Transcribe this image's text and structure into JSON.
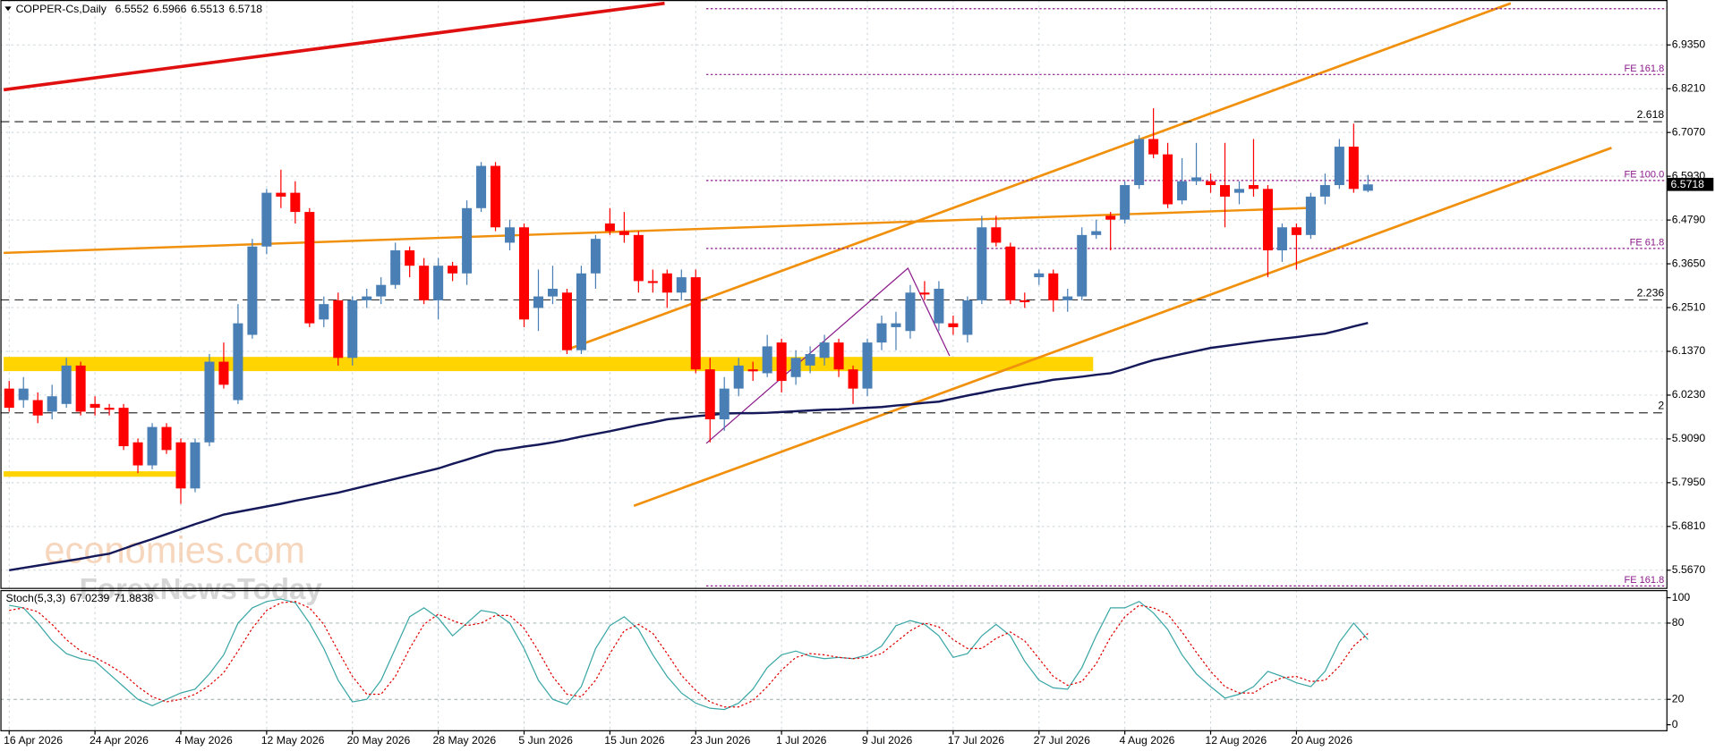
{
  "chart_data": {
    "type": "candlestick",
    "title": "COPPER-Cs,Daily",
    "categories": [
      "16 Apr 2026",
      null,
      null,
      null,
      null,
      null,
      "24 Apr 2026",
      null,
      null,
      null,
      null,
      null,
      "4 May 2026",
      null,
      null,
      null,
      null,
      null,
      "12 May 2026",
      null,
      null,
      null,
      null,
      null,
      "20 May 2026",
      null,
      null,
      null,
      null,
      null,
      "28 May 2026",
      null,
      null,
      null,
      null,
      null,
      "5 Jun 2026",
      null,
      null,
      null,
      null,
      null,
      "15 Jun 2026",
      null,
      null,
      null,
      null,
      null,
      "23 Jun 2026",
      null,
      null,
      null,
      null,
      null,
      "1 Jul 2026",
      null,
      null,
      null,
      null,
      null,
      "9 Jul 2026",
      null,
      null,
      null,
      null,
      null,
      "17 Jul 2026",
      null,
      null,
      null,
      null,
      null,
      "27 Jul 2026",
      null,
      null,
      null,
      null,
      null,
      "4 Aug 2026",
      null,
      null,
      null,
      null,
      null,
      "12 Aug 2026",
      null,
      null,
      null,
      null,
      null,
      "20 Aug 2026",
      null,
      null,
      null,
      null,
      null
    ],
    "open": [
      6.04,
      6.01,
      6.01,
      5.98,
      6.0,
      6.1,
      6.0,
      5.99,
      5.99,
      5.9,
      5.84,
      5.94,
      5.9,
      5.78,
      5.9,
      6.11,
      6.01,
      6.18,
      6.41,
      6.55,
      6.55,
      6.5,
      6.22,
      6.27,
      6.12,
      6.27,
      6.28,
      6.31,
      6.4,
      6.36,
      6.27,
      6.36,
      6.34,
      6.51,
      6.62,
      6.42,
      6.46,
      6.25,
      6.28,
      6.29,
      6.14,
      6.34,
      6.47,
      6.45,
      6.44,
      6.32,
      6.34,
      6.29,
      6.33,
      6.09,
      5.96,
      6.04,
      6.09,
      6.08,
      6.16,
      6.07,
      6.1,
      6.12,
      6.16,
      6.09,
      6.04,
      6.16,
      6.2,
      6.19,
      6.29,
      6.21,
      6.21,
      6.18,
      6.27,
      6.46,
      6.41,
      6.27,
      6.33,
      6.34,
      6.27,
      6.28,
      6.44,
      6.49,
      6.48,
      6.57,
      6.69,
      6.65,
      6.53,
      6.58,
      6.58,
      6.57,
      6.55,
      6.57,
      6.56,
      6.4,
      6.46,
      6.44,
      6.54,
      6.57,
      6.67,
      6.5552
    ],
    "high": [
      6.06,
      6.07,
      6.03,
      6.05,
      6.12,
      6.11,
      6.02,
      6.0,
      6.0,
      5.91,
      5.95,
      5.95,
      5.91,
      5.91,
      6.13,
      6.16,
      6.26,
      6.43,
      6.56,
      6.61,
      6.58,
      6.51,
      6.28,
      6.29,
      6.28,
      6.3,
      6.33,
      6.42,
      6.41,
      6.38,
      6.38,
      6.37,
      6.53,
      6.63,
      6.63,
      6.48,
      6.47,
      6.35,
      6.36,
      6.3,
      6.36,
      6.44,
      6.51,
      6.5,
      6.45,
      6.35,
      6.35,
      6.35,
      6.35,
      6.12,
      6.07,
      6.12,
      6.11,
      6.18,
      6.17,
      6.14,
      6.15,
      6.18,
      6.17,
      6.1,
      6.17,
      6.23,
      6.24,
      6.31,
      6.32,
      6.32,
      6.23,
      6.28,
      6.49,
      6.49,
      6.42,
      6.29,
      6.35,
      6.35,
      6.3,
      6.46,
      6.48,
      6.5,
      6.58,
      6.7,
      6.77,
      6.68,
      6.64,
      6.68,
      6.6,
      6.68,
      6.58,
      6.69,
      6.57,
      6.47,
      6.47,
      6.55,
      6.6,
      6.69,
      6.73,
      6.5966
    ],
    "low": [
      5.98,
      5.99,
      5.95,
      5.96,
      5.99,
      5.97,
      5.97,
      5.97,
      5.88,
      5.82,
      5.83,
      5.87,
      5.74,
      5.77,
      5.89,
      6.04,
      6.0,
      6.17,
      6.39,
      6.51,
      6.47,
      6.2,
      6.2,
      6.1,
      6.1,
      6.25,
      6.26,
      6.3,
      6.33,
      6.26,
      6.22,
      6.32,
      6.31,
      6.5,
      6.45,
      6.4,
      6.2,
      6.19,
      6.26,
      6.13,
      6.13,
      6.3,
      6.44,
      6.42,
      6.29,
      6.29,
      6.25,
      6.27,
      6.08,
      5.9,
      5.93,
      6.02,
      6.06,
      6.07,
      6.03,
      6.05,
      6.08,
      6.1,
      6.07,
      6.0,
      6.02,
      6.14,
      6.14,
      6.17,
      6.27,
      6.19,
      6.18,
      6.16,
      6.26,
      6.41,
      6.26,
      6.25,
      6.31,
      6.24,
      6.24,
      6.27,
      6.43,
      6.4,
      6.47,
      6.56,
      6.64,
      6.51,
      6.52,
      6.57,
      6.55,
      6.46,
      6.52,
      6.54,
      6.33,
      6.37,
      6.35,
      6.43,
      6.52,
      6.56,
      6.55,
      6.5513
    ],
    "close": [
      5.99,
      6.04,
      5.97,
      6.02,
      6.1,
      5.98,
      5.99,
      5.985,
      5.89,
      5.84,
      5.94,
      5.88,
      5.78,
      5.9,
      6.11,
      6.05,
      6.21,
      6.41,
      6.55,
      6.54,
      6.5,
      6.21,
      6.26,
      6.12,
      6.27,
      6.28,
      6.31,
      6.4,
      6.36,
      6.27,
      6.36,
      6.34,
      6.51,
      6.62,
      6.46,
      6.46,
      6.22,
      6.28,
      6.3,
      6.14,
      6.34,
      6.43,
      6.45,
      6.44,
      6.32,
      6.315,
      6.29,
      6.33,
      6.09,
      5.96,
      6.04,
      6.1,
      6.085,
      6.15,
      6.06,
      6.12,
      6.13,
      6.16,
      6.09,
      6.04,
      6.16,
      6.21,
      6.21,
      6.29,
      6.285,
      6.3,
      6.2,
      6.27,
      6.46,
      6.42,
      6.27,
      6.265,
      6.34,
      6.27,
      6.28,
      6.44,
      6.45,
      6.48,
      6.57,
      6.69,
      6.65,
      6.52,
      6.58,
      6.59,
      6.57,
      6.54,
      6.56,
      6.56,
      6.4,
      6.46,
      6.44,
      6.54,
      6.57,
      6.67,
      6.56,
      6.5718
    ],
    "bull_color": "#4a7fb5",
    "bear_color": "#ff0000",
    "ylim": [
      5.521,
      7.052
    ],
    "yticks": [
      {
        "value": 6.935,
        "label": "6.9350"
      },
      {
        "value": 6.821,
        "label": "6.8210"
      },
      {
        "value": 6.707,
        "label": "6.7070"
      },
      {
        "value": 6.593,
        "label": "6.5930"
      },
      {
        "value": 6.479,
        "label": "6.4790"
      },
      {
        "value": 6.365,
        "label": "6.3650"
      },
      {
        "value": 6.251,
        "label": "6.2510"
      },
      {
        "value": 6.137,
        "label": "6.1370"
      },
      {
        "value": 6.023,
        "label": "6.0230"
      },
      {
        "value": 5.909,
        "label": "5.9090"
      },
      {
        "value": 5.795,
        "label": "5.7950"
      },
      {
        "value": 5.681,
        "label": "5.6810"
      },
      {
        "value": 5.567,
        "label": "5.5670"
      }
    ],
    "grid": true,
    "moving_average": {
      "color": "#15195a",
      "values": [
        5.567,
        5.573,
        5.579,
        5.585,
        5.591,
        5.597,
        5.604,
        5.61,
        5.623,
        5.636,
        5.648,
        5.661,
        5.674,
        5.687,
        5.699,
        5.712,
        5.719,
        5.726,
        5.733,
        5.74,
        5.748,
        5.755,
        5.762,
        5.769,
        5.778,
        5.787,
        5.796,
        5.805,
        5.814,
        5.823,
        5.832,
        5.844,
        5.855,
        5.867,
        5.878,
        5.883,
        5.889,
        5.894,
        5.9,
        5.907,
        5.915,
        5.922,
        5.929,
        5.937,
        5.945,
        5.952,
        5.96,
        5.964,
        5.968,
        5.971,
        5.975,
        5.976,
        5.976,
        5.977,
        5.979,
        5.981,
        5.983,
        5.985,
        5.986,
        5.988,
        5.99,
        5.992,
        5.996,
        5.999,
        6.003,
        6.006,
        6.014,
        6.022,
        6.029,
        6.037,
        6.043,
        6.05,
        6.056,
        6.063,
        6.067,
        6.071,
        6.076,
        6.08,
        6.091,
        6.103,
        6.114,
        6.122,
        6.13,
        6.138,
        6.146,
        6.151,
        6.156,
        6.161,
        6.166,
        6.17,
        6.174,
        6.179,
        6.183,
        6.192,
        6.202,
        6.211
      ]
    },
    "levels": [
      {
        "label": "2.618",
        "value": 6.735
      },
      {
        "label": "2.236",
        "value": 6.271
      },
      {
        "label": "2",
        "value": 5.977
      }
    ],
    "fib_levels": [
      {
        "label": "FE 161.8",
        "value": 6.858
      },
      {
        "label": "FE 100.0",
        "value": 6.582
      },
      {
        "label": "FE 61.8",
        "value": 6.405
      },
      {
        "label": "FE 161.8",
        "value": 5.526
      }
    ],
    "fib_color": "#8b1a8b",
    "watermark": [
      "economies.com",
      "ForexNewsToday"
    ],
    "indicator": {
      "type": "line",
      "name": "Stoch(5,3,3)",
      "ylim": [
        -4.3,
        106
      ],
      "yticks": [
        0,
        20,
        80,
        100
      ],
      "series": [
        {
          "color": "#3aa6a6",
          "values": [
            94,
            92,
            80,
            66,
            56,
            52,
            50,
            40,
            30,
            20,
            15,
            20,
            25,
            28,
            40,
            55,
            80,
            92,
            97,
            99,
            96,
            80,
            60,
            35,
            18,
            20,
            35,
            60,
            85,
            92,
            84,
            70,
            80,
            90,
            88,
            80,
            60,
            35,
            20,
            16,
            30,
            60,
            78,
            85,
            75,
            55,
            38,
            25,
            17,
            13,
            12,
            17,
            28,
            45,
            55,
            58,
            54,
            52,
            53,
            52,
            55,
            62,
            78,
            82,
            79,
            70,
            53,
            56,
            70,
            79,
            70,
            50,
            35,
            29,
            28,
            45,
            70,
            92,
            92,
            97,
            88,
            75,
            55,
            40,
            30,
            21,
            24,
            30,
            42,
            38,
            33,
            30,
            42,
            65,
            80,
            67.0239
          ]
        },
        {
          "color": "#e00000",
          "dashed": true,
          "values": [
            90,
            92,
            89,
            79,
            67,
            58,
            53,
            47,
            40,
            30,
            22,
            18,
            20,
            24,
            31,
            41,
            58,
            76,
            90,
            96,
            97,
            92,
            79,
            58,
            38,
            24,
            24,
            38,
            60,
            79,
            87,
            82,
            78,
            80,
            86,
            86,
            76,
            58,
            38,
            24,
            22,
            35,
            56,
            74,
            79,
            72,
            56,
            39,
            27,
            18,
            14,
            14,
            19,
            30,
            43,
            53,
            56,
            55,
            53,
            52,
            53,
            56,
            65,
            74,
            80,
            77,
            67,
            60,
            60,
            68,
            73,
            66,
            52,
            38,
            31,
            34,
            48,
            69,
            85,
            94,
            92,
            87,
            73,
            57,
            42,
            30,
            25,
            25,
            32,
            37,
            38,
            34,
            35,
            46,
            62,
            71.8838
          ]
        }
      ]
    }
  }
}
